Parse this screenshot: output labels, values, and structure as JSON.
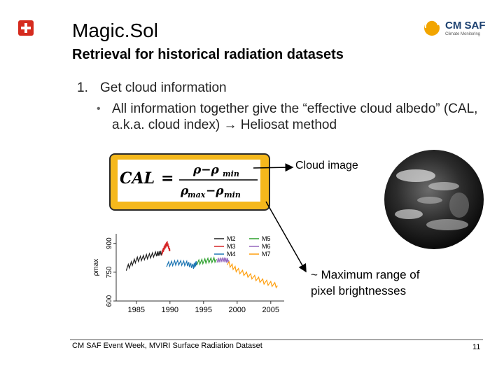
{
  "header": {
    "title": "Magic.Sol",
    "subtitle": "Retrieval for historical radiation datasets",
    "logo_text": "CM SAF",
    "logo_subtext": "Climate Monitoring"
  },
  "content": {
    "item_number": "1.",
    "item_text": "Get cloud information",
    "bullet_text": "All information together give the “effective cloud albedo” (CAL, a.k.a. cloud index) → Heliosat method",
    "cloud_label": "Cloud image",
    "max_range_label_line1": "~ Maximum range of",
    "max_range_label_line2": "pixel brightnesses"
  },
  "chart_data": {
    "type": "line",
    "ylabel": "ρmax",
    "y_ticks": [
      "600",
      "750",
      "900"
    ],
    "ylim": [
      600,
      950
    ],
    "x_ticks": [
      "1985",
      "1990",
      "1995",
      "2000",
      "2005"
    ],
    "xlim": [
      1982,
      2007
    ],
    "series": [
      {
        "name": "M2",
        "color": "#222222",
        "x": [
          1983.5,
          1985,
          1986.5,
          1988,
          1988.8
        ],
        "y": [
          770,
          815,
          830,
          845,
          850
        ]
      },
      {
        "name": "M3",
        "color": "#d62728",
        "x": [
          1988.8,
          1989.2,
          1989.6,
          1990
        ],
        "y": [
          850,
          880,
          900,
          860
        ]
      },
      {
        "name": "M4",
        "color": "#1f77b4",
        "x": [
          1989.5,
          1991,
          1992.5,
          1993.5,
          1994
        ],
        "y": [
          790,
          800,
          795,
          780,
          800
        ]
      },
      {
        "name": "M5",
        "color": "#2ca02c",
        "x": [
          1994,
          1995.5,
          1997
        ],
        "y": [
          800,
          810,
          815
        ]
      },
      {
        "name": "M6",
        "color": "#9467bd",
        "x": [
          1997,
          1998,
          1998.8
        ],
        "y": [
          812,
          815,
          810
        ]
      },
      {
        "name": "M7",
        "color": "#ff9f0e",
        "x": [
          1998.5,
          2000,
          2002,
          2004,
          2006
        ],
        "y": [
          800,
          760,
          730,
          700,
          680
        ]
      }
    ]
  },
  "footer": {
    "text": "CM SAF Event Week, MVIRI Surface Radiation Dataset",
    "page_number": "11"
  }
}
